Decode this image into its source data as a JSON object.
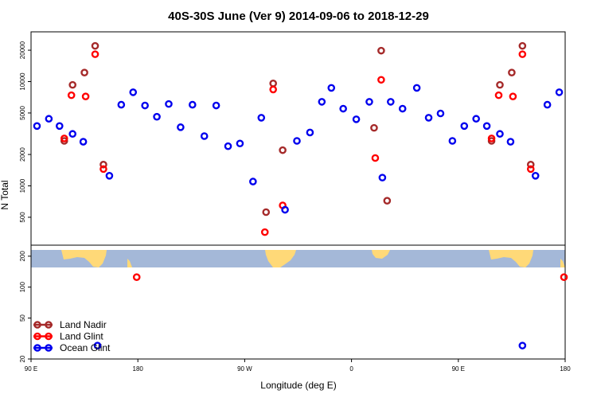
{
  "chart_data": {
    "type": "scatter",
    "title": "40S-30S June (Ver 9)   2014-09-06 to 2018-12-29",
    "xlabel": "Longitude (deg E)",
    "ylabel": "N Total",
    "x_range_deg": [
      90,
      540
    ],
    "x_ticks": [
      {
        "value": 90,
        "label": "90 E"
      },
      {
        "value": 180,
        "label": "180"
      },
      {
        "value": 270,
        "label": "90 W"
      },
      {
        "value": 360,
        "label": "0"
      },
      {
        "value": 450,
        "label": "90 E"
      },
      {
        "value": 540,
        "label": "180"
      }
    ],
    "upper_panel": {
      "y_scale": "log",
      "y_range": [
        270,
        30000
      ],
      "y_ticks": [
        {
          "value": 500,
          "label": "500"
        },
        {
          "value": 1000,
          "label": "1000"
        },
        {
          "value": 2000,
          "label": "2000"
        },
        {
          "value": 5000,
          "label": "5000"
        },
        {
          "value": 10000,
          "label": "10000"
        },
        {
          "value": 20000,
          "label": "20000"
        }
      ]
    },
    "lower_panel": {
      "y_scale": "log",
      "y_range": [
        20,
        230
      ],
      "y_ticks": [
        {
          "value": 20,
          "label": "20"
        },
        {
          "value": 50,
          "label": "50"
        },
        {
          "value": 100,
          "label": "100"
        },
        {
          "value": 200,
          "label": "200"
        }
      ],
      "map_strip_y_range": [
        150,
        230
      ]
    },
    "series": [
      {
        "name": "Land Nadir",
        "color": "#A52A2A",
        "points": [
          {
            "x": 118,
            "y": 2700,
            "panel": "upper"
          },
          {
            "x": 125,
            "y": 9300,
            "panel": "upper"
          },
          {
            "x": 135,
            "y": 12200,
            "panel": "upper"
          },
          {
            "x": 144,
            "y": 22000,
            "panel": "upper"
          },
          {
            "x": 151,
            "y": 1600,
            "panel": "upper"
          },
          {
            "x": 288,
            "y": 560,
            "panel": "upper"
          },
          {
            "x": 294,
            "y": 9600,
            "panel": "upper"
          },
          {
            "x": 302,
            "y": 2200,
            "panel": "upper"
          },
          {
            "x": 379,
            "y": 3600,
            "panel": "upper"
          },
          {
            "x": 385,
            "y": 19800,
            "panel": "upper"
          },
          {
            "x": 390,
            "y": 720,
            "panel": "upper"
          },
          {
            "x": 478,
            "y": 2700,
            "panel": "upper"
          },
          {
            "x": 485,
            "y": 9300,
            "panel": "upper"
          },
          {
            "x": 495,
            "y": 12200,
            "panel": "upper"
          },
          {
            "x": 504,
            "y": 22000,
            "panel": "upper"
          },
          {
            "x": 511,
            "y": 1600,
            "panel": "upper"
          }
        ]
      },
      {
        "name": "Land Glint",
        "color": "#FF0000",
        "points": [
          {
            "x": 118,
            "y": 2850,
            "panel": "upper"
          },
          {
            "x": 124,
            "y": 7400,
            "panel": "upper"
          },
          {
            "x": 136,
            "y": 7200,
            "panel": "upper"
          },
          {
            "x": 144,
            "y": 18300,
            "panel": "upper"
          },
          {
            "x": 151,
            "y": 1450,
            "panel": "upper"
          },
          {
            "x": 179,
            "y": 125,
            "panel": "lower"
          },
          {
            "x": 287,
            "y": 360,
            "panel": "upper"
          },
          {
            "x": 294,
            "y": 8400,
            "panel": "upper"
          },
          {
            "x": 302,
            "y": 650,
            "panel": "upper"
          },
          {
            "x": 380,
            "y": 1850,
            "panel": "upper"
          },
          {
            "x": 385,
            "y": 10400,
            "panel": "upper"
          },
          {
            "x": 478,
            "y": 2850,
            "panel": "upper"
          },
          {
            "x": 484,
            "y": 7400,
            "panel": "upper"
          },
          {
            "x": 496,
            "y": 7200,
            "panel": "upper"
          },
          {
            "x": 504,
            "y": 18300,
            "panel": "upper"
          },
          {
            "x": 511,
            "y": 1450,
            "panel": "upper"
          },
          {
            "x": 539,
            "y": 125,
            "panel": "lower"
          }
        ]
      },
      {
        "name": "Ocean Glint",
        "color": "#0000EE",
        "points": [
          {
            "x": 95,
            "y": 3750,
            "panel": "upper"
          },
          {
            "x": 105,
            "y": 4400,
            "panel": "upper"
          },
          {
            "x": 114,
            "y": 3750,
            "panel": "upper"
          },
          {
            "x": 125,
            "y": 3150,
            "panel": "upper"
          },
          {
            "x": 134,
            "y": 2650,
            "panel": "upper"
          },
          {
            "x": 146,
            "y": 27,
            "panel": "lower"
          },
          {
            "x": 156,
            "y": 1250,
            "panel": "upper"
          },
          {
            "x": 166,
            "y": 6000,
            "panel": "upper"
          },
          {
            "x": 176,
            "y": 7900,
            "panel": "upper"
          },
          {
            "x": 186,
            "y": 5900,
            "panel": "upper"
          },
          {
            "x": 196,
            "y": 4600,
            "panel": "upper"
          },
          {
            "x": 206,
            "y": 6100,
            "panel": "upper"
          },
          {
            "x": 216,
            "y": 3650,
            "panel": "upper"
          },
          {
            "x": 226,
            "y": 6000,
            "panel": "upper"
          },
          {
            "x": 236,
            "y": 3000,
            "panel": "upper"
          },
          {
            "x": 246,
            "y": 5900,
            "panel": "upper"
          },
          {
            "x": 256,
            "y": 2400,
            "panel": "upper"
          },
          {
            "x": 266,
            "y": 2550,
            "panel": "upper"
          },
          {
            "x": 277,
            "y": 1100,
            "panel": "upper"
          },
          {
            "x": 284,
            "y": 4500,
            "panel": "upper"
          },
          {
            "x": 304,
            "y": 590,
            "panel": "upper"
          },
          {
            "x": 314,
            "y": 2700,
            "panel": "upper"
          },
          {
            "x": 325,
            "y": 3250,
            "panel": "upper"
          },
          {
            "x": 335,
            "y": 6400,
            "panel": "upper"
          },
          {
            "x": 343,
            "y": 8700,
            "panel": "upper"
          },
          {
            "x": 353,
            "y": 5500,
            "panel": "upper"
          },
          {
            "x": 364,
            "y": 4350,
            "panel": "upper"
          },
          {
            "x": 375,
            "y": 6400,
            "panel": "upper"
          },
          {
            "x": 386,
            "y": 1200,
            "panel": "upper"
          },
          {
            "x": 393,
            "y": 6400,
            "panel": "upper"
          },
          {
            "x": 403,
            "y": 5500,
            "panel": "upper"
          },
          {
            "x": 415,
            "y": 8700,
            "panel": "upper"
          },
          {
            "x": 425,
            "y": 4500,
            "panel": "upper"
          },
          {
            "x": 435,
            "y": 4950,
            "panel": "upper"
          },
          {
            "x": 445,
            "y": 2700,
            "panel": "upper"
          },
          {
            "x": 455,
            "y": 3750,
            "panel": "upper"
          },
          {
            "x": 465,
            "y": 4400,
            "panel": "upper"
          },
          {
            "x": 474,
            "y": 3750,
            "panel": "upper"
          },
          {
            "x": 485,
            "y": 3150,
            "panel": "upper"
          },
          {
            "x": 494,
            "y": 2650,
            "panel": "upper"
          },
          {
            "x": 504,
            "y": 27,
            "panel": "lower"
          },
          {
            "x": 515,
            "y": 1250,
            "panel": "upper"
          },
          {
            "x": 525,
            "y": 6000,
            "panel": "upper"
          },
          {
            "x": 535,
            "y": 7900,
            "panel": "upper"
          }
        ]
      }
    ],
    "legend": {
      "placement": "bottom-left",
      "entries": [
        "Land Nadir",
        "Land Glint",
        "Ocean Glint"
      ]
    },
    "map_colors": {
      "ocean": "#A4B8D8",
      "land": "#FFD978"
    }
  }
}
